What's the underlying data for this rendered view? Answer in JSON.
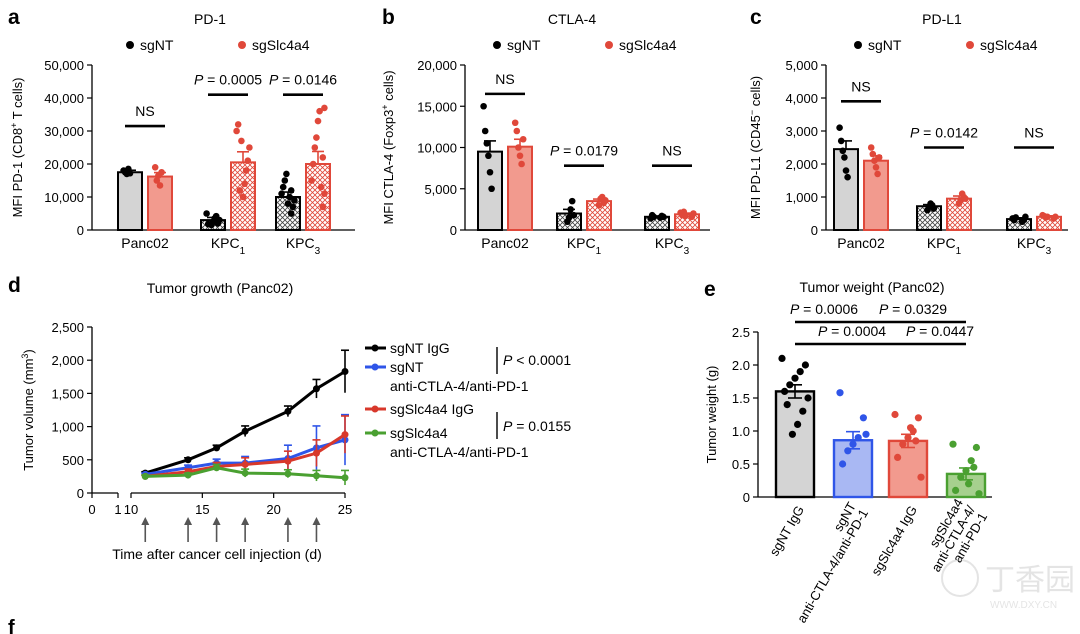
{
  "colors": {
    "black_group": "#000000",
    "red_group": "#e0483a",
    "red_fill": "#f29a8e",
    "grey_fill": "#d4d4d4",
    "blue": "#2f55e8",
    "blue_fill": "#a9b8f3",
    "green": "#4aa031",
    "green_fill": "#a6d08e",
    "red_line": "#d8382b"
  },
  "watermark": {
    "text": "丁香园",
    "sub": "WWW.DXY.CN"
  },
  "chart_data": [
    {
      "type": "bar",
      "panel_label": "a",
      "title": "PD-1",
      "ylabel_prefix": "MFI PD-1 (CD8",
      "ylabel_sup": "+",
      "ylabel_suffix": " T cells)",
      "ylim": [
        0,
        50000
      ],
      "yticks": [
        {
          "v": 0,
          "label": "0"
        },
        {
          "v": 10000,
          "label": "10,000"
        },
        {
          "v": 20000,
          "label": "20,000"
        },
        {
          "v": 30000,
          "label": "30,000"
        },
        {
          "v": 40000,
          "label": "40,000"
        },
        {
          "v": 50000,
          "label": "50,000"
        }
      ],
      "legend": [
        "sgNT",
        "sgSlc4a4"
      ],
      "categories": [
        {
          "main": "Panc02",
          "sub": ""
        },
        {
          "main": "KPC",
          "sub": "1"
        },
        {
          "main": "KPC",
          "sub": "3"
        }
      ],
      "series": [
        {
          "name": "sgNT",
          "means": [
            17500,
            3000,
            10000
          ],
          "sems": [
            600,
            800,
            1500
          ],
          "points": [
            [
              18000,
              17500,
              17000,
              18500,
              17200
            ],
            [
              1500,
              2500,
              3500,
              4200,
              2000,
              3000,
              5000,
              1800
            ],
            [
              5000,
              7000,
              9000,
              11000,
              13000,
              15000,
              17000,
              8000,
              10000,
              12000
            ]
          ]
        },
        {
          "name": "sgSlc4a4",
          "means": [
            16200,
            20500,
            20000
          ],
          "sems": [
            1200,
            3200,
            3800
          ],
          "points": [
            [
              19000,
              15000,
              16500,
              13500,
              17500
            ],
            [
              10000,
              14000,
              18000,
              21000,
              25000,
              30000,
              32000,
              12000,
              27000
            ],
            [
              7000,
              11000,
              15000,
              20000,
              25000,
              28000,
              33000,
              36000,
              13000,
              22000,
              37000
            ]
          ]
        }
      ],
      "annotations": [
        {
          "text": "NS",
          "cat": 0,
          "y": 31500
        },
        {
          "text": "P = 0.0005",
          "cat": 1,
          "y": 41000
        },
        {
          "text": "P = 0.0146",
          "cat": 2,
          "y": 41000
        }
      ]
    },
    {
      "type": "bar",
      "panel_label": "b",
      "title": "CTLA-4",
      "ylabel_prefix": "MFI CTLA-4 (Foxp3",
      "ylabel_sup": "+",
      "ylabel_suffix": " cells)",
      "ylim": [
        0,
        20000
      ],
      "yticks": [
        {
          "v": 0,
          "label": "0"
        },
        {
          "v": 5000,
          "label": "5,000"
        },
        {
          "v": 10000,
          "label": "10,000"
        },
        {
          "v": 15000,
          "label": "15,000"
        },
        {
          "v": 20000,
          "label": "20,000"
        }
      ],
      "legend": [
        "sgNT",
        "sgSlc4a4"
      ],
      "categories": [
        {
          "main": "Panc02",
          "sub": ""
        },
        {
          "main": "KPC",
          "sub": "1"
        },
        {
          "main": "KPC",
          "sub": "3"
        }
      ],
      "series": [
        {
          "name": "sgNT",
          "means": [
            9500,
            2000,
            1600
          ],
          "sems": [
            1300,
            500,
            100
          ],
          "points": [
            [
              15000,
              12000,
              10500,
              9000,
              7000,
              5000
            ],
            [
              1000,
              1500,
              2500,
              3500,
              1800
            ],
            [
              1500,
              1700,
              1600,
              1400,
              1800,
              1600
            ]
          ]
        },
        {
          "name": "sgSlc4a4",
          "means": [
            10100,
            3500,
            1900
          ],
          "sems": [
            900,
            250,
            150
          ],
          "points": [
            [
              13000,
              12000,
              10000,
              9000,
              8000,
              11000
            ],
            [
              3000,
              3800,
              4000,
              3300,
              3600
            ],
            [
              1600,
              2000,
              2100,
              1800,
              2200,
              1700
            ]
          ]
        }
      ],
      "annotations": [
        {
          "text": "NS",
          "cat": 0,
          "y": 16500
        },
        {
          "text": "P = 0.0179",
          "cat": 1,
          "y": 7800
        },
        {
          "text": "NS",
          "cat": 2,
          "y": 7800
        }
      ]
    },
    {
      "type": "bar",
      "panel_label": "c",
      "title": "PD-L1",
      "ylabel_prefix": "MFI PD-L1 (CD45",
      "ylabel_sup": "−",
      "ylabel_suffix": " cells)",
      "ylim": [
        0,
        5000
      ],
      "yticks": [
        {
          "v": 0,
          "label": "0"
        },
        {
          "v": 1000,
          "label": "1,000"
        },
        {
          "v": 2000,
          "label": "2,000"
        },
        {
          "v": 3000,
          "label": "3,000"
        },
        {
          "v": 4000,
          "label": "4,000"
        },
        {
          "v": 5000,
          "label": "5,000"
        }
      ],
      "legend": [
        "sgNT",
        "sgSlc4a4"
      ],
      "categories": [
        {
          "main": "Panc02",
          "sub": ""
        },
        {
          "main": "KPC",
          "sub": "1"
        },
        {
          "main": "KPC",
          "sub": "3"
        }
      ],
      "series": [
        {
          "name": "sgNT",
          "means": [
            2450,
            720,
            330
          ],
          "sems": [
            250,
            50,
            40
          ],
          "points": [
            [
              3100,
              2700,
              2400,
              2200,
              1800,
              1600
            ],
            [
              600,
              700,
              800,
              750,
              650
            ],
            [
              250,
              300,
              400,
              350,
              300,
              380
            ]
          ]
        },
        {
          "name": "sgSlc4a4",
          "means": [
            2100,
            950,
            400
          ],
          "sems": [
            150,
            80,
            30
          ],
          "points": [
            [
              2500,
              2300,
              2100,
              1900,
              1700,
              2200
            ],
            [
              800,
              900,
              1100,
              1000,
              950
            ],
            [
              350,
              400,
              450,
              420,
              380,
              400
            ]
          ]
        }
      ],
      "annotations": [
        {
          "text": "NS",
          "cat": 0,
          "y": 3900
        },
        {
          "text": "P = 0.0142",
          "cat": 1,
          "y": 2500
        },
        {
          "text": "NS",
          "cat": 2,
          "y": 2500
        }
      ]
    },
    {
      "type": "line",
      "panel_label": "d",
      "title": "Tumor growth (Panc02)",
      "xlabel": "Time after cancer cell injection (d)",
      "ylabel_prefix": "Tumor volume (mm",
      "ylabel_sup": "3",
      "ylabel_suffix": ")",
      "ylim": [
        0,
        2500
      ],
      "yticks": [
        {
          "v": 0,
          "label": "0"
        },
        {
          "v": 500,
          "label": "500"
        },
        {
          "v": 1000,
          "label": "1,000"
        },
        {
          "v": 1500,
          "label": "1,500"
        },
        {
          "v": 2000,
          "label": "2,000"
        },
        {
          "v": 2500,
          "label": "2,500"
        }
      ],
      "xticks_left": [
        "0",
        "1"
      ],
      "xticks_main": [
        {
          "v": 10,
          "label": "10"
        },
        {
          "v": 15,
          "label": "15"
        },
        {
          "v": 20,
          "label": "20"
        },
        {
          "v": 25,
          "label": "25"
        }
      ],
      "xlim": [
        10,
        25
      ],
      "treatment_days": [
        11,
        14,
        16,
        18,
        21,
        23
      ],
      "series": [
        {
          "name": "sgNT IgG",
          "label_lines": [
            "sgNT IgG"
          ],
          "color": "#000000",
          "x": [
            11,
            14,
            16,
            18,
            21,
            23,
            25
          ],
          "y": [
            300,
            500,
            680,
            930,
            1230,
            1570,
            1830
          ],
          "err": [
            20,
            30,
            40,
            80,
            80,
            140,
            320
          ]
        },
        {
          "name": "sgNT anti-CTLA-4/anti-PD-1",
          "label_lines": [
            "sgNT",
            "anti-CTLA-4/anti-PD-1"
          ],
          "color": "#2f55e8",
          "x": [
            11,
            14,
            16,
            18,
            21,
            23,
            25
          ],
          "y": [
            280,
            380,
            450,
            450,
            520,
            680,
            800
          ],
          "err": [
            20,
            40,
            60,
            100,
            200,
            330,
            380
          ]
        },
        {
          "name": "sgSlc4a4 IgG",
          "label_lines": [
            "sgSlc4a4 IgG"
          ],
          "color": "#d8382b",
          "x": [
            11,
            14,
            16,
            18,
            21,
            23,
            25
          ],
          "y": [
            250,
            320,
            400,
            430,
            480,
            600,
            880
          ],
          "err": [
            20,
            40,
            60,
            100,
            150,
            200,
            280
          ]
        },
        {
          "name": "sgSlc4a4 anti-CTLA-4/anti-PD-1",
          "label_lines": [
            "sgSlc4a4",
            "anti-CTLA-4/anti-PD-1"
          ],
          "color": "#4aa031",
          "x": [
            11,
            14,
            16,
            18,
            21,
            23,
            25
          ],
          "y": [
            250,
            270,
            380,
            300,
            290,
            260,
            230
          ],
          "err": [
            20,
            30,
            50,
            60,
            60,
            80,
            110
          ]
        }
      ],
      "legend_stats": [
        "P < 0.0001",
        "P = 0.0155"
      ]
    },
    {
      "type": "bar",
      "panel_label": "e",
      "title": "Tumor weight (Panc02)",
      "ylabel": "Tumor weight (g)",
      "ylim": [
        0,
        2.5
      ],
      "yticks": [
        {
          "v": 0,
          "label": "0"
        },
        {
          "v": 0.5,
          "label": "0.5"
        },
        {
          "v": 1.0,
          "label": "1.0"
        },
        {
          "v": 1.5,
          "label": "1.5"
        },
        {
          "v": 2.0,
          "label": "2.0"
        },
        {
          "v": 2.5,
          "label": "2.5"
        }
      ],
      "categories": [
        [
          "sgNT IgG"
        ],
        [
          "sgNT",
          "anti-CTLA-4/anti-PD-1"
        ],
        [
          "sgSlc4a4 IgG"
        ],
        [
          "sgSlc4a4",
          "anti-CTLA-4/",
          "anti-PD-1"
        ]
      ],
      "means": [
        1.6,
        0.86,
        0.85,
        0.35
      ],
      "sems": [
        0.1,
        0.13,
        0.1,
        0.09
      ],
      "points": [
        [
          2.1,
          2.0,
          1.9,
          1.8,
          1.7,
          1.6,
          1.5,
          1.3,
          1.1,
          0.95,
          1.4
        ],
        [
          1.58,
          1.2,
          0.9,
          0.8,
          0.7,
          0.5,
          0.95
        ],
        [
          1.25,
          1.2,
          1.0,
          0.9,
          0.8,
          0.6,
          0.3,
          0.85,
          1.05
        ],
        [
          0.8,
          0.75,
          0.55,
          0.4,
          0.3,
          0.1,
          0.05,
          0.45,
          0.2
        ]
      ],
      "comparisons": [
        {
          "text": "P = 0.0006",
          "a": 0,
          "b": 1,
          "level": 0
        },
        {
          "text": "P = 0.0329",
          "a": 1,
          "b": 3,
          "level": 0
        },
        {
          "text": "P = 0.0004",
          "a": 0,
          "b": 2,
          "level": 1
        },
        {
          "text": "P = 0.0447",
          "a": 2,
          "b": 3,
          "level": 1
        }
      ]
    }
  ],
  "next_panel_label": "f"
}
